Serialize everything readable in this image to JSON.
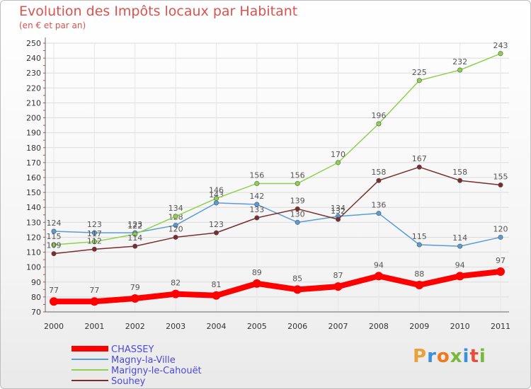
{
  "chart_data": {
    "type": "line",
    "title": "Evolution des Impôts locaux par Habitant",
    "subtitle": "(en € et par an)",
    "xlabel": "",
    "ylabel": "",
    "ylim": [
      70,
      250
    ],
    "yticks": [
      70,
      80,
      90,
      100,
      110,
      120,
      130,
      140,
      150,
      160,
      170,
      180,
      190,
      200,
      210,
      220,
      230,
      240,
      250
    ],
    "x": [
      "2000",
      "2001",
      "2002",
      "2003",
      "2004",
      "2005",
      "2006",
      "2007",
      "2008",
      "2009",
      "2010",
      "2011"
    ],
    "grid": true,
    "legend_position": "bottom-left",
    "series": [
      {
        "name": "CHASSEY",
        "color": "#ff0000",
        "values": [
          77,
          77,
          79,
          82,
          81,
          89,
          85,
          87,
          94,
          88,
          94,
          97
        ]
      },
      {
        "name": "Magny-la-Ville",
        "color": "#5b9bd5",
        "values": [
          124,
          123,
          123,
          128,
          143,
          142,
          130,
          134,
          136,
          115,
          114,
          120
        ]
      },
      {
        "name": "Marigny-le-Cahouët",
        "color": "#8fd14f",
        "values": [
          115,
          117,
          122,
          134,
          146,
          156,
          156,
          170,
          196,
          225,
          232,
          243
        ]
      },
      {
        "name": "Souhey",
        "color": "#7b2d2d",
        "values": [
          109,
          112,
          114,
          120,
          123,
          133,
          139,
          132,
          158,
          167,
          158,
          155
        ]
      }
    ]
  },
  "logo": {
    "text": "Proxiti"
  }
}
